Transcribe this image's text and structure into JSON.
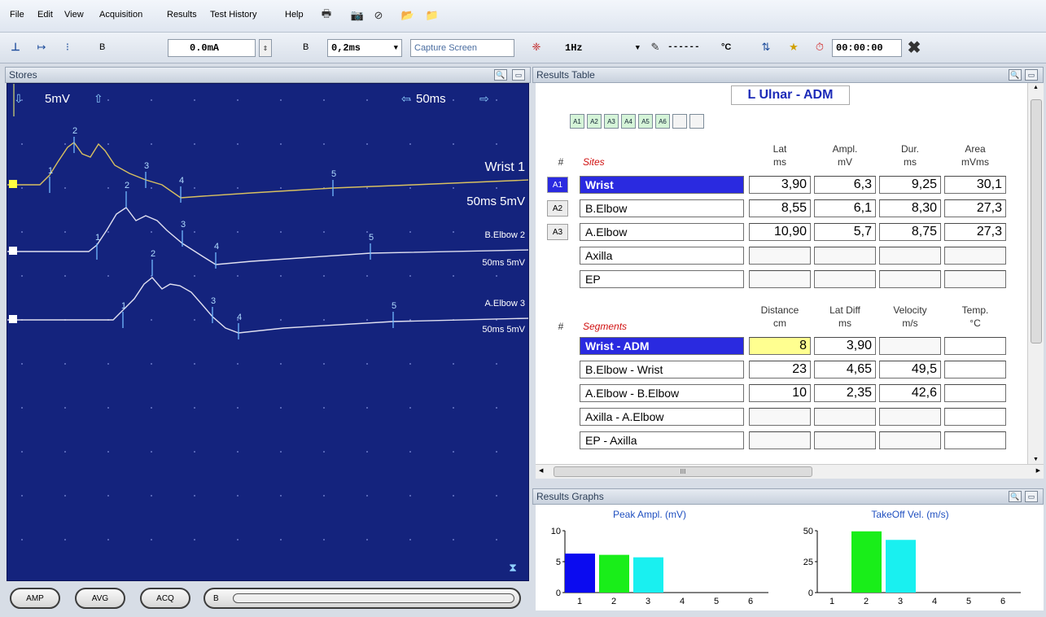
{
  "menu": [
    "File",
    "Edit",
    "View",
    "Acquisition",
    "Results",
    "Test History",
    "Help"
  ],
  "toolbar": {
    "b_label_1": "B",
    "current": "0.0mA",
    "b_label_2": "B",
    "duration": "0,2ms",
    "capture_label": "Capture Screen",
    "rate": "1Hz",
    "temp_value": "------",
    "temp_unit": "°C",
    "timer": "00:00:00"
  },
  "stores": {
    "title": "Stores",
    "gain": "5mV",
    "sweep": "50ms",
    "traces": [
      {
        "name": "Wrist 1",
        "scale": "50ms 5mV"
      },
      {
        "name": "B.Elbow 2",
        "scale": "50ms 5mV"
      },
      {
        "name": "A.Elbow 3",
        "scale": "50ms 5mV"
      }
    ],
    "markers": [
      "1",
      "2",
      "3",
      "4",
      "5"
    ]
  },
  "bottom_buttons": [
    "AMP",
    "AVG",
    "ACQ",
    "B"
  ],
  "results_table": {
    "title": "Results Table",
    "nerve": "L Ulnar - ADM",
    "a_buttons": [
      "A1",
      "A2",
      "A3",
      "A4",
      "A5",
      "A6",
      "",
      ""
    ],
    "sites_header": {
      "hash": "#",
      "sites": "Sites",
      "lat": "Lat",
      "lat_u": "ms",
      "ampl": "Ampl.",
      "ampl_u": "mV",
      "dur": "Dur.",
      "dur_u": "ms",
      "area": "Area",
      "area_u": "mVms"
    },
    "sites": [
      {
        "btn": "A1",
        "name": "Wrist",
        "lat": "3,90",
        "ampl": "6,3",
        "dur": "9,25",
        "area": "30,1"
      },
      {
        "btn": "A2",
        "name": "B.Elbow",
        "lat": "8,55",
        "ampl": "6,1",
        "dur": "8,30",
        "area": "27,3"
      },
      {
        "btn": "A3",
        "name": "A.Elbow",
        "lat": "10,90",
        "ampl": "5,7",
        "dur": "8,75",
        "area": "27,3"
      },
      {
        "btn": "",
        "name": "Axilla",
        "lat": "",
        "ampl": "",
        "dur": "",
        "area": ""
      },
      {
        "btn": "",
        "name": "EP",
        "lat": "",
        "ampl": "",
        "dur": "",
        "area": ""
      }
    ],
    "segments_header": {
      "hash": "#",
      "segments": "Segments",
      "dist": "Distance",
      "dist_u": "cm",
      "latdiff": "Lat Diff",
      "latdiff_u": "ms",
      "vel": "Velocity",
      "vel_u": "m/s",
      "temp": "Temp.",
      "temp_u": "°C"
    },
    "segments": [
      {
        "name": "Wrist - ADM",
        "dist": "8",
        "latdiff": "3,90",
        "vel": "",
        "temp": ""
      },
      {
        "name": "B.Elbow - Wrist",
        "dist": "23",
        "latdiff": "4,65",
        "vel": "49,5",
        "temp": ""
      },
      {
        "name": "A.Elbow - B.Elbow",
        "dist": "10",
        "latdiff": "2,35",
        "vel": "42,6",
        "temp": ""
      },
      {
        "name": "Axilla - A.Elbow",
        "dist": "",
        "latdiff": "",
        "vel": "",
        "temp": ""
      },
      {
        "name": "EP - Axilla",
        "dist": "",
        "latdiff": "",
        "vel": "",
        "temp": ""
      }
    ],
    "scroll_grip": "III"
  },
  "results_graphs": {
    "title": "Results Graphs"
  },
  "chart_data": [
    {
      "type": "bar",
      "title": "Peak Ampl. (mV)",
      "categories": [
        "1",
        "2",
        "3",
        "4",
        "5",
        "6"
      ],
      "values": [
        6.3,
        6.1,
        5.7,
        null,
        null,
        null
      ],
      "colors": [
        "#0b0bf0",
        "#19ee19",
        "#19f0f0"
      ],
      "ylim": [
        0,
        10
      ],
      "yticks": [
        "0",
        "5",
        "10"
      ]
    },
    {
      "type": "bar",
      "title": "TakeOff Vel. (m/s)",
      "categories": [
        "1",
        "2",
        "3",
        "4",
        "5",
        "6"
      ],
      "values": [
        null,
        49.5,
        42.6,
        null,
        null,
        null
      ],
      "colors": [
        "#0b0bf0",
        "#19ee19",
        "#19f0f0"
      ],
      "ylim": [
        0,
        50
      ],
      "yticks": [
        "0",
        "25",
        "50"
      ]
    }
  ]
}
